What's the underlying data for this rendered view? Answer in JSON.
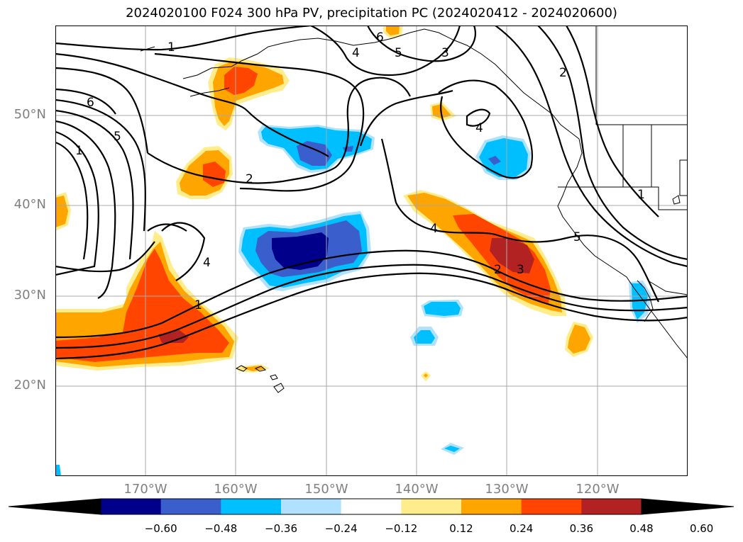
{
  "title": "2024020100 F024 300 hPa PV, precipitation PC (2024020412 - 2024020600)",
  "map": {
    "projection": "latitude-longitude",
    "region": "North-east Pacific",
    "lat_range_deg": [
      10,
      60
    ],
    "lon_range_deg": [
      -180,
      -110
    ],
    "latitude_labels": [
      "50°N",
      "40°N",
      "30°N",
      "20°N"
    ],
    "longitude_labels": [
      "170°W",
      "160°W",
      "150°W",
      "140°W",
      "130°W",
      "120°W"
    ],
    "gridlines": true,
    "contour_field": "300 hPa PV",
    "contour_labels": [
      "1",
      "6",
      "5",
      "1",
      "2",
      "4",
      "6",
      "5",
      "3",
      "2",
      "4",
      "4",
      "1",
      "4",
      "2",
      "3",
      "5",
      "1"
    ],
    "shaded_field": "precipitation PC"
  },
  "colorbar": {
    "orientation": "horizontal",
    "extend": "both",
    "tick_labels": [
      "−0.60",
      "−0.48",
      "−0.36",
      "−0.24",
      "−0.12",
      "0.12",
      "0.24",
      "0.36",
      "0.48",
      "0.60"
    ],
    "colors": [
      "#9932cc",
      "#00008b",
      "#3a5fcd",
      "#00bfff",
      "#b0e2ff",
      "#ffffff",
      "#ffec8b",
      "#ffa500",
      "#ff4500",
      "#b22222",
      "#ff82ab"
    ]
  }
}
